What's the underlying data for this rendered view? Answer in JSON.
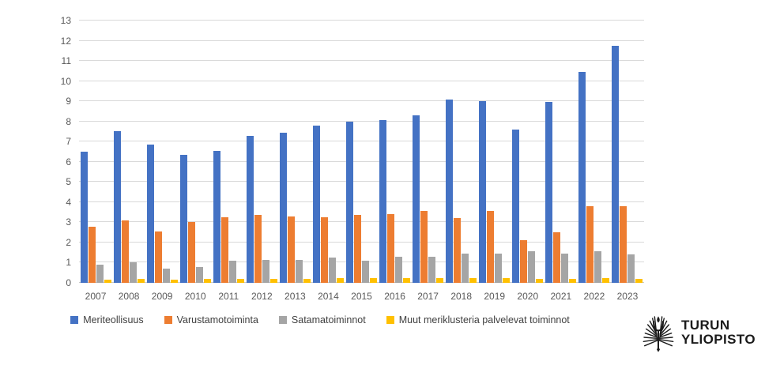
{
  "chart_data": {
    "type": "bar",
    "title": "",
    "categories": [
      "2007",
      "2008",
      "2009",
      "2010",
      "2011",
      "2012",
      "2013",
      "2014",
      "2015",
      "2016",
      "2017",
      "2018",
      "2019",
      "2020",
      "2021",
      "2022",
      "2023"
    ],
    "series": [
      {
        "name": "Meriteollisuus",
        "color": "#4472C4",
        "values": [
          6.5,
          7.5,
          6.85,
          6.35,
          6.55,
          7.3,
          7.45,
          7.8,
          8.0,
          8.05,
          8.3,
          9.1,
          9.0,
          7.6,
          8.95,
          10.45,
          11.75
        ]
      },
      {
        "name": "Varustamotoiminta",
        "color": "#ED7D31",
        "values": [
          2.8,
          3.1,
          2.55,
          3.0,
          3.25,
          3.35,
          3.3,
          3.25,
          3.35,
          3.4,
          3.55,
          3.2,
          3.55,
          2.1,
          2.5,
          3.8,
          3.8
        ]
      },
      {
        "name": "Satamatoiminnot",
        "color": "#A5A5A5",
        "values": [
          0.9,
          1.0,
          0.7,
          0.8,
          1.1,
          1.15,
          1.15,
          1.25,
          1.1,
          1.3,
          1.3,
          1.45,
          1.45,
          1.55,
          1.45,
          1.55,
          1.4
        ]
      },
      {
        "name": "Muut meriklusteria palvelevat toiminnot",
        "color": "#FFC000",
        "values": [
          0.15,
          0.2,
          0.15,
          0.2,
          0.2,
          0.2,
          0.2,
          0.25,
          0.25,
          0.25,
          0.25,
          0.25,
          0.25,
          0.2,
          0.2,
          0.25,
          0.2
        ]
      }
    ],
    "xlabel": "",
    "ylabel": "",
    "ylim": [
      0,
      13
    ],
    "ytick_step": 1,
    "grid": true,
    "legend_position": "bottom"
  },
  "branding": {
    "logo_icon": "torch-wings-emblem",
    "logo_line1": "TURUN",
    "logo_line2": "YLIOPISTO"
  },
  "colors": {
    "background": "#ffffff",
    "gridline": "#d9d9d9",
    "axis_text": "#595959",
    "legend_text": "#404040",
    "logo": "#1b1b1b"
  }
}
